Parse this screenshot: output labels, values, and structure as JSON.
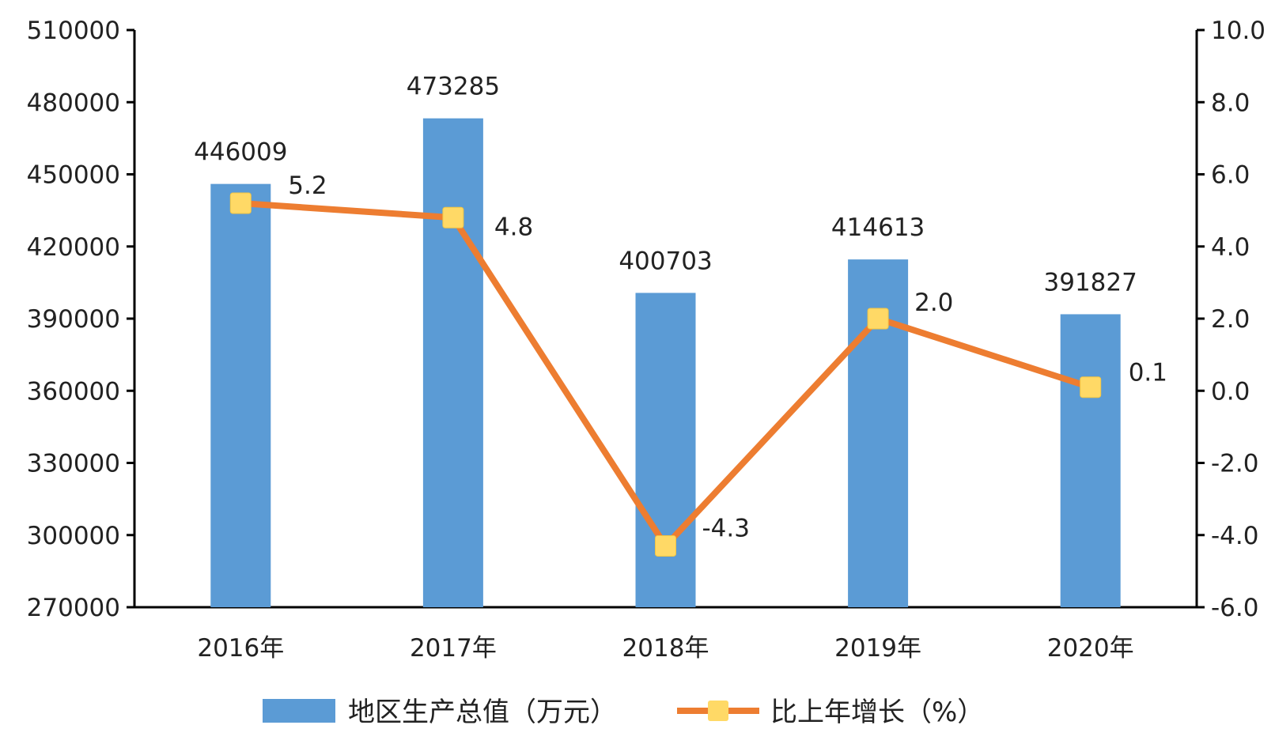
{
  "chart_data": {
    "type": "bar+line",
    "categories": [
      "2016年",
      "2017年",
      "2018年",
      "2019年",
      "2020年"
    ],
    "series": [
      {
        "name": "地区生产总值（万元）",
        "type": "bar",
        "axis": "left",
        "values": [
          446009,
          473285,
          400703,
          414613,
          391827
        ],
        "labels": [
          "446009",
          "473285",
          "400703",
          "414613",
          "391827"
        ],
        "color": "#5B9BD5"
      },
      {
        "name": "比上年增长（%）",
        "type": "line",
        "axis": "right",
        "values": [
          5.2,
          4.8,
          -4.3,
          2.0,
          0.1
        ],
        "labels": [
          "5.2",
          "4.8",
          "-4.3",
          "2.0",
          "0.1"
        ],
        "color": "#ED7D31",
        "marker_color": "#FFD966"
      }
    ],
    "y_left": {
      "ylim": [
        270000,
        510000
      ],
      "ticks": [
        270000,
        300000,
        330000,
        360000,
        390000,
        420000,
        450000,
        480000,
        510000
      ],
      "tick_labels": [
        "270000",
        "300000",
        "330000",
        "360000",
        "390000",
        "420000",
        "450000",
        "480000",
        "510000"
      ]
    },
    "y_right": {
      "ylim": [
        -6,
        10
      ],
      "ticks": [
        -6,
        -4,
        -2,
        0,
        2,
        4,
        6,
        8,
        10
      ],
      "tick_labels": [
        "-6.0",
        "-4.0",
        "-2.0",
        "0.0",
        "2.0",
        "4.0",
        "6.0",
        "8.0",
        "10.0"
      ]
    },
    "grid": false,
    "legend_position": "bottom"
  }
}
